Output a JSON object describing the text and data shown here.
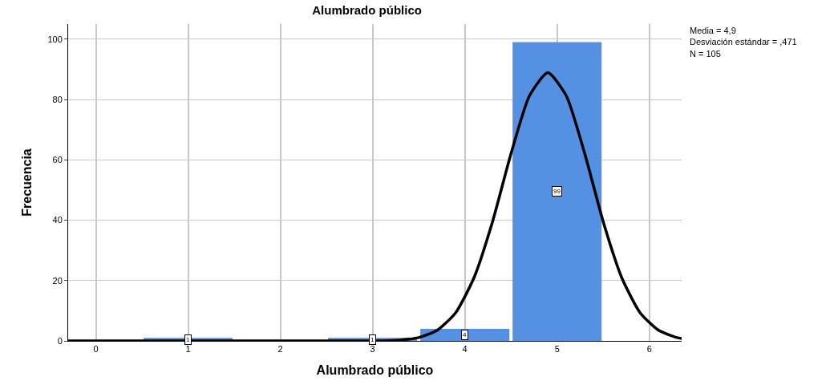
{
  "chart_data": {
    "type": "histogram",
    "title": "Alumbrado público",
    "xlabel": "Alumbrado público",
    "ylabel": "Frecuencia",
    "annotations": [
      "Media = 4,9\nDesviación estándar = ,471\nN = 105"
    ],
    "series": [
      {
        "bins": [
          0.5,
          1.5,
          2.5,
          3.5,
          4.5,
          5.5
        ],
        "values": [
          1,
          0,
          1,
          4,
          99
        ],
        "color": "#5591e3",
        "value_labels": [
          "1",
          null,
          "1",
          "4",
          "99"
        ]
      },
      {
        "type": "line",
        "color": "#000000",
        "x": [
          -0.3,
          3.0,
          3.3,
          3.5,
          3.7,
          3.9,
          4.1,
          4.3,
          4.5,
          4.7,
          4.9,
          5.1,
          5.3,
          5.5,
          5.7,
          5.9,
          6.1,
          6.3,
          6.35
        ],
        "values": [
          0,
          0,
          0.3,
          1.1,
          3.5,
          9.3,
          21,
          39.5,
          62,
          81.2,
          88.9,
          81.2,
          62,
          39.5,
          21,
          9.3,
          3.5,
          1.1,
          0.8
        ]
      }
    ],
    "xlim": [
      -0.3,
      6.35
    ],
    "xticks": [
      0,
      1,
      2,
      3,
      4,
      5,
      6
    ],
    "ylim": [
      0,
      105
    ],
    "yticks": [
      0,
      20,
      40,
      60,
      80,
      100
    ],
    "grid": true,
    "marker": "none",
    "line_style": "solid"
  }
}
